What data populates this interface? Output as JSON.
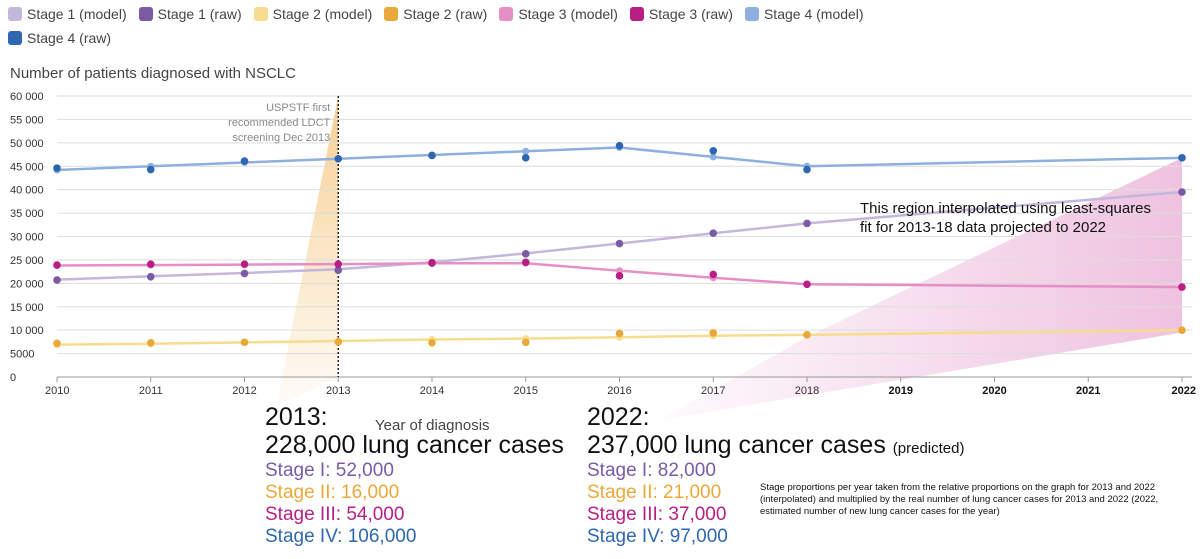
{
  "legend": [
    {
      "label": "Stage 1 (model)",
      "color": "#c4b7dc"
    },
    {
      "label": "Stage 1 (raw)",
      "color": "#7b5aa6"
    },
    {
      "label": "Stage 2 (model)",
      "color": "#f7dc8d"
    },
    {
      "label": "Stage 2 (raw)",
      "color": "#e9a93a"
    },
    {
      "label": "Stage 3 (model)",
      "color": "#e68fc6"
    },
    {
      "label": "Stage 3 (raw)",
      "color": "#b81f84"
    },
    {
      "label": "Stage 4 (model)",
      "color": "#8eb0e0"
    },
    {
      "label": "Stage 4 (raw)",
      "color": "#2e67b1"
    }
  ],
  "chart_data": {
    "type": "line",
    "title": "Number of patients diagnosed with NSCLC",
    "xlabel": "Year of diagnosis",
    "ylabel": "Number of patients diagnosed with NSCLC",
    "x": [
      2010,
      2011,
      2012,
      2013,
      2014,
      2015,
      2016,
      2017,
      2018,
      2019,
      2020,
      2021,
      2022
    ],
    "xlim": [
      2010,
      2022
    ],
    "ylim": [
      0,
      60000
    ],
    "yticks": [
      0,
      5000,
      10000,
      15000,
      20000,
      25000,
      30000,
      35000,
      40000,
      45000,
      50000,
      55000,
      60000
    ],
    "ytick_labels": [
      "0",
      "5000",
      "10 000",
      "15 000",
      "20 000",
      "25 000",
      "30 000",
      "35 000",
      "40 000",
      "45 000",
      "50 000",
      "55 000",
      "60 000"
    ],
    "bold_xticks": [
      2019,
      2020,
      2021,
      2022
    ],
    "grid": true,
    "legend_position": "top",
    "series": [
      {
        "name": "Stage 1 (model)",
        "color": "#c4b7dc",
        "x": [
          2010,
          2011,
          2012,
          2013,
          2014,
          2015,
          2016,
          2017,
          2018,
          2022
        ],
        "y": [
          20800,
          21500,
          22200,
          23000,
          24500,
          26400,
          28500,
          30700,
          32800,
          39500
        ]
      },
      {
        "name": "Stage 1 (raw)",
        "color": "#7b5aa6",
        "x": [
          2010,
          2011,
          2012,
          2013,
          2014,
          2015,
          2016,
          2017,
          2018,
          2022
        ],
        "y": [
          20700,
          21400,
          22100,
          22800,
          24300,
          26300,
          28500,
          30700,
          32800,
          39500
        ]
      },
      {
        "name": "Stage 2 (model)",
        "color": "#f7dc8d",
        "x": [
          2010,
          2011,
          2012,
          2013,
          2014,
          2015,
          2016,
          2017,
          2018,
          2022
        ],
        "y": [
          6900,
          7100,
          7400,
          7700,
          8000,
          8200,
          8500,
          8800,
          9000,
          10000
        ]
      },
      {
        "name": "Stage 2 (raw)",
        "color": "#e9a93a",
        "x": [
          2010,
          2011,
          2012,
          2013,
          2014,
          2015,
          2016,
          2017,
          2018,
          2022
        ],
        "y": [
          7200,
          7300,
          7400,
          7500,
          7300,
          7400,
          9300,
          9400,
          9000,
          10000
        ]
      },
      {
        "name": "Stage 3 (model)",
        "color": "#e68fc6",
        "x": [
          2010,
          2011,
          2012,
          2013,
          2014,
          2015,
          2016,
          2017,
          2018,
          2022
        ],
        "y": [
          23800,
          23900,
          24000,
          24100,
          24300,
          24300,
          22700,
          21200,
          19800,
          19200
        ]
      },
      {
        "name": "Stage 3 (raw)",
        "color": "#b81f84",
        "x": [
          2010,
          2011,
          2012,
          2013,
          2014,
          2015,
          2016,
          2017,
          2018,
          2022
        ],
        "y": [
          23900,
          24100,
          24100,
          24100,
          24400,
          24500,
          21600,
          21900,
          19800,
          19200
        ]
      },
      {
        "name": "Stage 4 (model)",
        "color": "#8eb0e0",
        "x": [
          2010,
          2011,
          2012,
          2013,
          2014,
          2015,
          2016,
          2017,
          2018,
          2022
        ],
        "y": [
          44200,
          45000,
          45800,
          46600,
          47400,
          48200,
          49000,
          47000,
          45000,
          46800
        ]
      },
      {
        "name": "Stage 4 (raw)",
        "color": "#2e67b1",
        "x": [
          2010,
          2011,
          2012,
          2013,
          2014,
          2015,
          2016,
          2017,
          2018,
          2022
        ],
        "y": [
          44600,
          44300,
          46100,
          46600,
          47300,
          46800,
          49400,
          48300,
          44300,
          46800
        ]
      }
    ],
    "annotations": {
      "vline_year": 2013,
      "vline_label": [
        "USPSTF first",
        "recommended LDCT",
        "screening Dec 2013"
      ],
      "region_note": [
        "This region interpolated using least-squares",
        "fit for 2013-18 data projected to 2022"
      ]
    }
  },
  "summary_2013": {
    "year": "2013:",
    "cases": "228,000 lung cancer cases",
    "stages": [
      {
        "label": "Stage I: 52,000",
        "color": "#7b5aa6"
      },
      {
        "label": "Stage II: 16,000",
        "color": "#e9a93a"
      },
      {
        "label": "Stage III: 54,000",
        "color": "#b81f84"
      },
      {
        "label": "Stage IV: 106,000",
        "color": "#2e67b1"
      }
    ]
  },
  "summary_2022": {
    "year": "2022:",
    "cases": "237,000 lung cancer cases",
    "predicted": "(predicted)",
    "stages": [
      {
        "label": "Stage I: 82,000",
        "color": "#7b5aa6"
      },
      {
        "label": "Stage II: 21,000",
        "color": "#e9a93a"
      },
      {
        "label": "Stage III: 37,000",
        "color": "#b81f84"
      },
      {
        "label": "Stage IV: 97,000",
        "color": "#2e67b1"
      }
    ]
  },
  "footnote": "Stage proportions per year taken from the relative proportions on the graph for 2013 and 2022 (interpolated) and multiplied by the real number of lung cancer cases for 2013 and 2022 (2022, estimated number of new lung cancer cases for the year)",
  "colors": {
    "orange_wedge": "#f6c77f",
    "pink_wedge": "#e8a8d2",
    "grid": "#dddddd",
    "axis": "#999999"
  }
}
